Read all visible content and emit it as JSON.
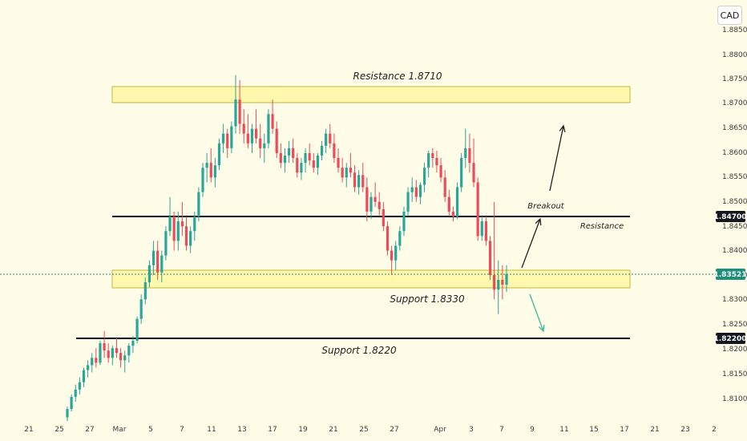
{
  "currency": "CAD",
  "colors": {
    "up": "#27a69a",
    "down": "#ee4a5a",
    "zone_fill": "#fff59a",
    "zone_edge": "#c6b340",
    "level_line": "#000000",
    "last_price": "#1a8f7a",
    "arrow": "#1f1f1f",
    "arrow_down": "#39b89c"
  },
  "annotations": {
    "resistance_zone_label": "Resistance 1.8710",
    "resistance_line_label": "Resistance",
    "breakout_label": "Breakout",
    "support_zone_label": "Support 1.8330",
    "support_line_label": "Support 1.8220"
  },
  "price_badges": {
    "resistance_price": "1.84700",
    "last_price": "1.83521",
    "support_price": "1.82200"
  },
  "chart_data": {
    "type": "candlestick",
    "title": "",
    "ylim": [
      1.805,
      1.886
    ],
    "y_ticks": [
      "1.81000",
      "1.81500",
      "1.82000",
      "1.82500",
      "1.83000",
      "1.83500",
      "1.84000",
      "1.84500",
      "1.85000",
      "1.85500",
      "1.86000",
      "1.86500",
      "1.87000",
      "1.87500",
      "1.88000",
      "1.88500"
    ],
    "x_ticks": [
      "21",
      "25",
      "27",
      "Mar",
      "5",
      "7",
      "11",
      "13",
      "17",
      "19",
      "21",
      "25",
      "27",
      "Apr",
      "3",
      "7",
      "9",
      "11",
      "15",
      "17",
      "21",
      "23",
      "2"
    ],
    "zones": [
      {
        "name": "Resistance 1.8710",
        "from": 1.87,
        "to": 1.873
      },
      {
        "name": "Support 1.8330",
        "from": 1.832,
        "to": 1.835
      }
    ],
    "levels": [
      {
        "name": "Resistance",
        "value": 1.847
      },
      {
        "name": "Support 1.8220",
        "value": 1.822
      }
    ],
    "last_price": 1.83521,
    "candles": [
      [
        1.8058,
        1.808,
        1.805,
        1.8075
      ],
      [
        1.8075,
        1.8105,
        1.807,
        1.81
      ],
      [
        1.81,
        1.8125,
        1.809,
        1.8115
      ],
      [
        1.8115,
        1.814,
        1.8105,
        1.813
      ],
      [
        1.813,
        1.816,
        1.812,
        1.8155
      ],
      [
        1.8155,
        1.8175,
        1.814,
        1.8165
      ],
      [
        1.8165,
        1.819,
        1.815,
        1.818
      ],
      [
        1.818,
        1.82,
        1.816,
        1.817
      ],
      [
        1.817,
        1.8215,
        1.8165,
        1.821
      ],
      [
        1.821,
        1.8235,
        1.818,
        1.8195
      ],
      [
        1.8195,
        1.821,
        1.817,
        1.818
      ],
      [
        1.818,
        1.8205,
        1.8165,
        1.82
      ],
      [
        1.82,
        1.822,
        1.818,
        1.819
      ],
      [
        1.819,
        1.82,
        1.816,
        1.8175
      ],
      [
        1.8175,
        1.8195,
        1.815,
        1.8185
      ],
      [
        1.8185,
        1.821,
        1.817,
        1.8205
      ],
      [
        1.8205,
        1.8225,
        1.819,
        1.8215
      ],
      [
        1.8215,
        1.8265,
        1.821,
        1.826
      ],
      [
        1.826,
        1.831,
        1.825,
        1.83
      ],
      [
        1.83,
        1.8345,
        1.829,
        1.8335
      ],
      [
        1.8335,
        1.838,
        1.8325,
        1.837
      ],
      [
        1.837,
        1.842,
        1.835,
        1.84
      ],
      [
        1.84,
        1.842,
        1.834,
        1.8355
      ],
      [
        1.8355,
        1.84,
        1.8335,
        1.839
      ],
      [
        1.839,
        1.845,
        1.838,
        1.844
      ],
      [
        1.844,
        1.851,
        1.843,
        1.847
      ],
      [
        1.847,
        1.848,
        1.84,
        1.842
      ],
      [
        1.842,
        1.848,
        1.84,
        1.846
      ],
      [
        1.846,
        1.85,
        1.843,
        1.845
      ],
      [
        1.845,
        1.847,
        1.84,
        1.841
      ],
      [
        1.841,
        1.845,
        1.8395,
        1.844
      ],
      [
        1.844,
        1.848,
        1.842,
        1.847
      ],
      [
        1.847,
        1.853,
        1.846,
        1.852
      ],
      [
        1.852,
        1.858,
        1.851,
        1.857
      ],
      [
        1.857,
        1.86,
        1.854,
        1.858
      ],
      [
        1.858,
        1.861,
        1.854,
        1.855
      ],
      [
        1.855,
        1.859,
        1.853,
        1.8575
      ],
      [
        1.8575,
        1.863,
        1.8565,
        1.862
      ],
      [
        1.862,
        1.866,
        1.86,
        1.864
      ],
      [
        1.864,
        1.865,
        1.859,
        1.861
      ],
      [
        1.861,
        1.8665,
        1.86,
        1.8655
      ],
      [
        1.8655,
        1.876,
        1.864,
        1.871
      ],
      [
        1.871,
        1.875,
        1.864,
        1.866
      ],
      [
        1.866,
        1.869,
        1.862,
        1.864
      ],
      [
        1.864,
        1.868,
        1.861,
        1.862
      ],
      [
        1.862,
        1.866,
        1.86,
        1.865
      ],
      [
        1.865,
        1.869,
        1.862,
        1.863
      ],
      [
        1.863,
        1.866,
        1.859,
        1.861
      ],
      [
        1.861,
        1.864,
        1.858,
        1.862
      ],
      [
        1.862,
        1.869,
        1.861,
        1.868
      ],
      [
        1.868,
        1.871,
        1.864,
        1.865
      ],
      [
        1.865,
        1.8665,
        1.859,
        1.86
      ],
      [
        1.86,
        1.862,
        1.857,
        1.858
      ],
      [
        1.858,
        1.861,
        1.856,
        1.8595
      ],
      [
        1.8595,
        1.8625,
        1.858,
        1.861
      ],
      [
        1.861,
        1.863,
        1.858,
        1.859
      ],
      [
        1.859,
        1.86,
        1.855,
        1.856
      ],
      [
        1.856,
        1.859,
        1.8545,
        1.858
      ],
      [
        1.858,
        1.861,
        1.856,
        1.86
      ],
      [
        1.86,
        1.862,
        1.8575,
        1.8585
      ],
      [
        1.8585,
        1.86,
        1.856,
        1.857
      ],
      [
        1.857,
        1.86,
        1.8555,
        1.8595
      ],
      [
        1.8595,
        1.8625,
        1.8585,
        1.8615
      ],
      [
        1.8615,
        1.865,
        1.86,
        1.864
      ],
      [
        1.864,
        1.866,
        1.861,
        1.862
      ],
      [
        1.862,
        1.864,
        1.858,
        1.859
      ],
      [
        1.859,
        1.861,
        1.856,
        1.857
      ],
      [
        1.857,
        1.859,
        1.854,
        1.855
      ],
      [
        1.855,
        1.858,
        1.853,
        1.857
      ],
      [
        1.857,
        1.86,
        1.855,
        1.856
      ],
      [
        1.856,
        1.8575,
        1.852,
        1.853
      ],
      [
        1.853,
        1.8565,
        1.8515,
        1.8555
      ],
      [
        1.8555,
        1.858,
        1.852,
        1.853
      ],
      [
        1.853,
        1.855,
        1.846,
        1.848
      ],
      [
        1.848,
        1.852,
        1.8465,
        1.851
      ],
      [
        1.851,
        1.854,
        1.849,
        1.85
      ],
      [
        1.85,
        1.852,
        1.847,
        1.8485
      ],
      [
        1.8485,
        1.85,
        1.844,
        1.845
      ],
      [
        1.845,
        1.846,
        1.839,
        1.84
      ],
      [
        1.84,
        1.841,
        1.835,
        1.838
      ],
      [
        1.838,
        1.842,
        1.836,
        1.841
      ],
      [
        1.841,
        1.845,
        1.84,
        1.844
      ],
      [
        1.844,
        1.849,
        1.843,
        1.848
      ],
      [
        1.848,
        1.853,
        1.847,
        1.852
      ],
      [
        1.852,
        1.855,
        1.85,
        1.853
      ],
      [
        1.853,
        1.8545,
        1.85,
        1.851
      ],
      [
        1.851,
        1.854,
        1.8495,
        1.8535
      ],
      [
        1.8535,
        1.858,
        1.852,
        1.857
      ],
      [
        1.857,
        1.8605,
        1.855,
        1.86
      ],
      [
        1.86,
        1.861,
        1.857,
        1.859
      ],
      [
        1.859,
        1.8605,
        1.856,
        1.8575
      ],
      [
        1.8575,
        1.859,
        1.854,
        1.855
      ],
      [
        1.855,
        1.8565,
        1.85,
        1.851
      ],
      [
        1.851,
        1.8525,
        1.847,
        1.848
      ],
      [
        1.848,
        1.849,
        1.846,
        1.847
      ],
      [
        1.847,
        1.854,
        1.8465,
        1.853
      ],
      [
        1.853,
        1.86,
        1.852,
        1.859
      ],
      [
        1.859,
        1.865,
        1.857,
        1.861
      ],
      [
        1.861,
        1.864,
        1.856,
        1.858
      ],
      [
        1.858,
        1.863,
        1.853,
        1.854
      ],
      [
        1.854,
        1.855,
        1.842,
        1.843
      ],
      [
        1.843,
        1.847,
        1.842,
        1.846
      ],
      [
        1.846,
        1.847,
        1.841,
        1.842
      ],
      [
        1.842,
        1.843,
        1.834,
        1.835
      ],
      [
        1.835,
        1.85,
        1.83,
        1.832
      ],
      [
        1.832,
        1.838,
        1.827,
        1.834
      ],
      [
        1.834,
        1.837,
        1.83,
        1.833
      ],
      [
        1.833,
        1.837,
        1.8315,
        1.8352
      ]
    ]
  }
}
